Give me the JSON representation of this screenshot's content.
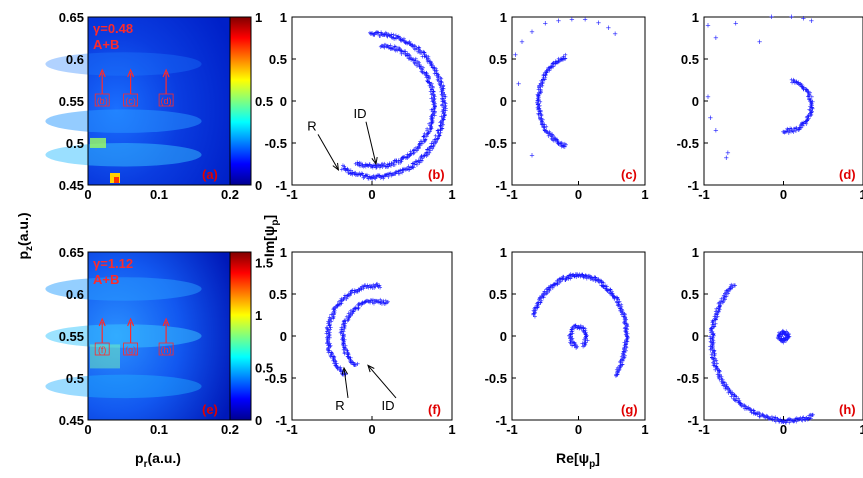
{
  "chart_data": [
    {
      "panel": "(a)",
      "type": "heatmap",
      "ticks_x": [
        "0",
        "0.1",
        "0.2"
      ],
      "ticks_y": [
        "0.65",
        "0.6",
        "0.55",
        "0.5",
        "0.45"
      ],
      "xlim": [
        0,
        0.2
      ],
      "ylim": [
        0.45,
        0.65
      ],
      "annotations": [
        "γ=0.48",
        "A+B"
      ],
      "markers": [
        "(b)",
        "(c)",
        "(d)"
      ],
      "colorbar": {
        "ticks": [
          "1",
          "0.5",
          "0"
        ],
        "range": [
          0,
          1
        ]
      }
    },
    {
      "panel": "(e)",
      "type": "heatmap",
      "ticks_x": [
        "0",
        "0.1",
        "0.2"
      ],
      "ticks_y": [
        "0.65",
        "0.6",
        "0.55",
        "0.5",
        "0.45"
      ],
      "xlim": [
        0,
        0.2
      ],
      "ylim": [
        0.45,
        0.65
      ],
      "annotations": [
        "γ=1.12",
        "A+B"
      ],
      "markers": [
        "(f)",
        "(g)",
        "(h)"
      ],
      "colorbar": {
        "ticks": [
          "1.5",
          "1",
          "0.5",
          "0"
        ],
        "range": [
          0,
          1.6
        ]
      }
    },
    {
      "panel": "(b)",
      "type": "scatter",
      "xlim": [
        -1,
        1
      ],
      "ylim": [
        -1,
        1
      ],
      "ticks": [
        "1",
        "0.5",
        "0",
        "-0.5",
        "-1"
      ],
      "xticks": [
        "-1",
        "0",
        "1"
      ],
      "labels": [
        "R",
        "ID"
      ],
      "series": [
        {
          "arc": {
            "cx": 0.05,
            "cy": -0.05,
            "r": 0.85,
            "theta_start": -120,
            "theta_end": 95
          }
        },
        {
          "arc": {
            "cx": 0.05,
            "cy": -0.05,
            "r": 0.72,
            "theta_start": -110,
            "theta_end": 85
          }
        }
      ]
    },
    {
      "panel": "(c)",
      "type": "scatter",
      "xlim": [
        -1,
        1
      ],
      "ylim": [
        -1,
        1
      ],
      "ticks": [
        "1",
        "0.5",
        "0",
        "-0.5",
        "-1"
      ],
      "xticks": [
        "-1",
        "0",
        "1"
      ],
      "series": [
        {
          "arc": {
            "cx": -0.05,
            "cy": 0.0,
            "r": 0.55,
            "theta_start": 105,
            "theta_end": 255
          }
        },
        {
          "scatter_points": [
            [
              -0.95,
              0.55
            ],
            [
              -0.85,
              0.7
            ],
            [
              -0.7,
              0.82
            ],
            [
              -0.5,
              0.92
            ],
            [
              -0.3,
              0.95
            ],
            [
              -0.1,
              0.97
            ],
            [
              0.1,
              0.97
            ],
            [
              0.3,
              0.93
            ],
            [
              0.45,
              0.87
            ],
            [
              0.55,
              0.8
            ],
            [
              -0.9,
              0.2
            ],
            [
              -0.7,
              -0.65
            ]
          ]
        }
      ]
    },
    {
      "panel": "(d)",
      "type": "scatter",
      "xlim": [
        -1,
        1
      ],
      "ylim": [
        -1,
        1
      ],
      "ticks": [
        "1",
        "0.5",
        "0",
        "-0.5",
        "-1"
      ],
      "xticks": [
        "-1",
        "0",
        "1"
      ],
      "series": [
        {
          "arc": {
            "cx": 0.05,
            "cy": -0.05,
            "r": 0.3,
            "theta_start": -100,
            "theta_end": 80
          }
        },
        {
          "scatter_points": [
            [
              -0.95,
              0.9
            ],
            [
              -0.85,
              0.75
            ],
            [
              -0.6,
              0.92
            ],
            [
              -0.3,
              0.7
            ],
            [
              -0.15,
              1.0
            ],
            [
              0.1,
              1.0
            ],
            [
              0.25,
              0.98
            ],
            [
              0.35,
              0.95
            ],
            [
              -0.95,
              0.05
            ],
            [
              -0.92,
              -0.2
            ],
            [
              -0.85,
              -0.35
            ],
            [
              -0.7,
              -0.62
            ],
            [
              -0.72,
              -0.68
            ]
          ]
        }
      ]
    },
    {
      "panel": "(f)",
      "type": "scatter",
      "xlim": [
        -1,
        1
      ],
      "ylim": [
        -1,
        1
      ],
      "ticks": [
        "1",
        "0.5",
        "0",
        "-0.5",
        "-1"
      ],
      "xticks": [
        "-1",
        "0",
        "1"
      ],
      "labels": [
        "R",
        "ID"
      ],
      "series": [
        {
          "arc": {
            "cx": 0.05,
            "cy": 0.0,
            "r": 0.6,
            "theta_start": 85,
            "theta_end": 230
          }
        },
        {
          "arc": {
            "cx": 0.05,
            "cy": 0.0,
            "r": 0.42,
            "theta_start": 70,
            "theta_end": 235
          }
        }
      ]
    },
    {
      "panel": "(g)",
      "type": "scatter",
      "xlim": [
        -1,
        1
      ],
      "ylim": [
        -1,
        1
      ],
      "ticks": [
        "1",
        "0.5",
        "0",
        "-0.5",
        "-1"
      ],
      "xticks": [
        "-1",
        "0",
        "1"
      ],
      "series": [
        {
          "arc": {
            "cx": 0.0,
            "cy": 0.0,
            "r": 0.72,
            "theta_start": -40,
            "theta_end": 160
          }
        },
        {
          "arc": {
            "cx": 0.0,
            "cy": 0.0,
            "r": 0.12,
            "theta_start": -60,
            "theta_end": 260
          }
        }
      ]
    },
    {
      "panel": "(h)",
      "type": "scatter",
      "xlim": [
        -1,
        1
      ],
      "ylim": [
        -1,
        1
      ],
      "ticks": [
        "1",
        "0.5",
        "0",
        "-0.5",
        "-1"
      ],
      "xticks": [
        "-1",
        "0",
        "1"
      ],
      "series": [
        {
          "arc": {
            "cx": 0.05,
            "cy": -0.05,
            "r": 0.95,
            "theta_start": 135,
            "theta_end": 290
          }
        },
        {
          "arc": {
            "cx": 0.0,
            "cy": 0.0,
            "r": 0.05,
            "theta_start": -90,
            "theta_end": 270
          }
        }
      ]
    }
  ],
  "labels": {
    "pz": "p",
    "pz_sub": "z",
    "unit": "(a.u.)",
    "pr": "p",
    "pr_sub": "r",
    "im": "Im[ψ",
    "re": "Re[ψ",
    "psi_sub": "p",
    "close_bracket": "]"
  },
  "colors": {
    "points": "#1a1aff",
    "panel_label": "#e00000",
    "annotation": "#ff2a2a"
  }
}
